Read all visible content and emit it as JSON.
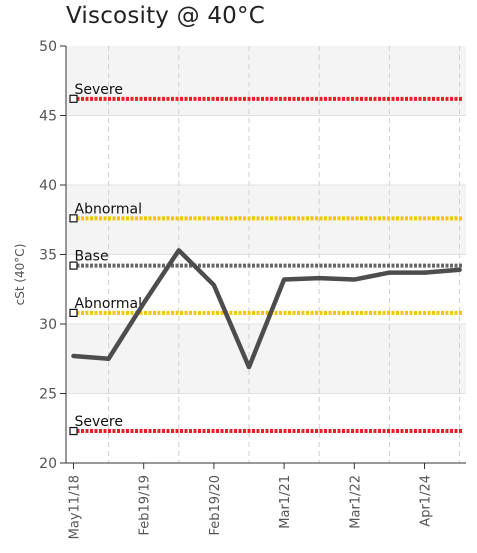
{
  "chart_data": {
    "type": "line",
    "title": "Viscosity @ 40°C",
    "ylabel": "cSt (40°C)",
    "xlabel": "",
    "ylim": [
      20,
      50
    ],
    "yticks": [
      20,
      25,
      30,
      35,
      40,
      45,
      50
    ],
    "grid": true,
    "x_tick_labels": [
      {
        "index": 0,
        "label": "May11/18"
      },
      {
        "index": 2,
        "label": "Feb19/19"
      },
      {
        "index": 4,
        "label": "Feb19/20"
      },
      {
        "index": 6,
        "label": "Mar1/21"
      },
      {
        "index": 8,
        "label": "Mar1/22"
      },
      {
        "index": 10,
        "label": "Apr1/24"
      }
    ],
    "x_slots": 12,
    "series": [
      {
        "values": [
          27.7,
          27.5,
          31.5,
          35.3,
          32.8,
          26.9,
          33.2,
          33.3,
          33.2,
          33.7,
          33.7,
          33.9
        ],
        "color": "#4d4d4d"
      }
    ],
    "limits": [
      {
        "label": "Severe",
        "value": 46.2,
        "color": "#ee1c25"
      },
      {
        "label": "Abnormal",
        "value": 37.6,
        "color": "#f5c400"
      },
      {
        "label": "Base",
        "value": 34.2,
        "color": "#666666"
      },
      {
        "label": "Abnormal",
        "value": 30.8,
        "color": "#f5c400"
      },
      {
        "label": "Severe",
        "value": 22.3,
        "color": "#ee1c25"
      }
    ]
  }
}
